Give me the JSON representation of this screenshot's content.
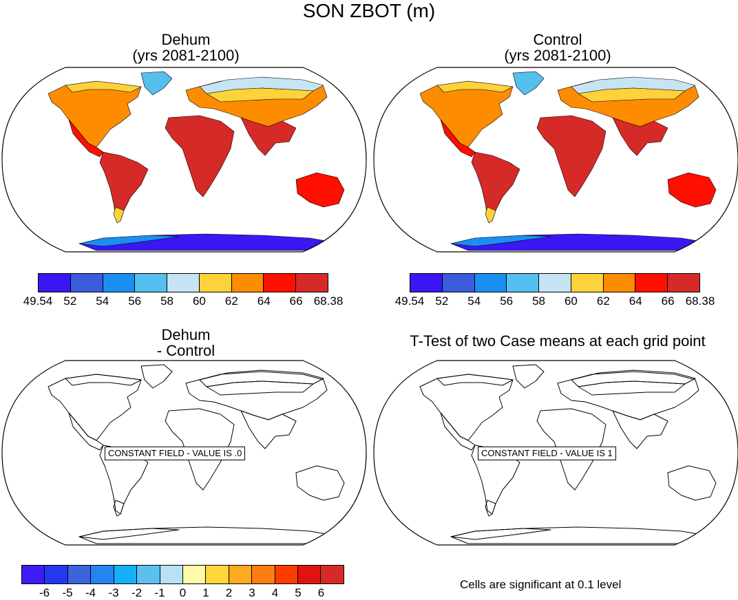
{
  "title": "SON ZBOT (m)",
  "panels": [
    {
      "title_line1": "Dehum",
      "title_line2": "(yrs 2081-2100)",
      "kind": "filled"
    },
    {
      "title_line1": "Control",
      "title_line2": "(yrs 2081-2100)",
      "kind": "filled"
    },
    {
      "title_line1": "Dehum",
      "title_line2": "- Control",
      "kind": "outline",
      "constant_label": "CONSTANT FIELD - VALUE IS .0"
    },
    {
      "title_line1": "T-Test of two Case means at each grid point",
      "kind": "outline",
      "constant_label": "CONSTANT FIELD - VALUE IS 1"
    }
  ],
  "colorbar_abs": {
    "labels": [
      "49.54",
      "52",
      "54",
      "56",
      "58",
      "60",
      "62",
      "64",
      "66",
      "68.38"
    ],
    "colors": [
      "#3b17f2",
      "#3c5bdd",
      "#1b8ff1",
      "#55bff0",
      "#c6e4f3",
      "#fdd23a",
      "#fd8c00",
      "#ff0f00",
      "#d62a28"
    ]
  },
  "colorbar_diff": {
    "labels": [
      "-6",
      "-5",
      "-4",
      "-3",
      "-2",
      "-1",
      "0",
      "1",
      "2",
      "3",
      "4",
      "5",
      "6"
    ],
    "colors": [
      "#3d1cf6",
      "#2438f0",
      "#3c64dd",
      "#2385ef",
      "#15b0f5",
      "#5cc0ee",
      "#b8e1f6",
      "#fff9a8",
      "#fdd63a",
      "#fdaa1e",
      "#fd7d12",
      "#fd3d00",
      "#e01212",
      "#d62a28"
    ]
  },
  "significance_note": "Cells are significant at 0.1 level",
  "map_colors": {
    "tropics": "#d62a28",
    "subtropics": "#ff0f00",
    "midlat": "#fd8c00",
    "highmid": "#fdd23a",
    "arctic": "#c6e4f3",
    "greenland": "#55bff0",
    "antarctic": "#3b17f2",
    "antarctic_edge": "#1b8ff1"
  }
}
